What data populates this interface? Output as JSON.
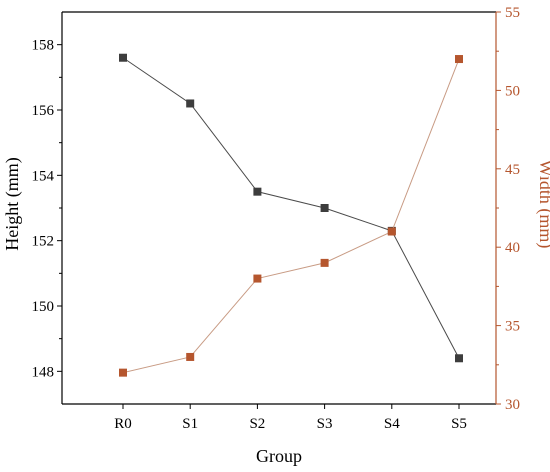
{
  "chart_data": {
    "type": "line",
    "categories": [
      "R0",
      "S1",
      "S2",
      "S3",
      "S4",
      "S5"
    ],
    "xlabel": "Group",
    "y_left": {
      "label": "Height (mm)",
      "range": [
        147,
        159
      ],
      "ticks": [
        148,
        150,
        152,
        154,
        156,
        158
      ]
    },
    "y_right": {
      "label": "Width (mm)",
      "range": [
        30,
        55
      ],
      "ticks": [
        30,
        35,
        40,
        45,
        50,
        55
      ]
    },
    "series": [
      {
        "axis": "left",
        "values": [
          157.6,
          156.2,
          153.5,
          153.0,
          152.3,
          148.4
        ],
        "color": "#4a4a4a",
        "marker_color": "#3d3d3d"
      },
      {
        "axis": "right",
        "values": [
          32.0,
          33.0,
          38.0,
          39.0,
          41.0,
          52.0
        ],
        "color": "#c89b84",
        "marker_color": "#b5562e"
      }
    ],
    "right_axis_color": "#b5562e",
    "grid": false,
    "legend": "none"
  }
}
